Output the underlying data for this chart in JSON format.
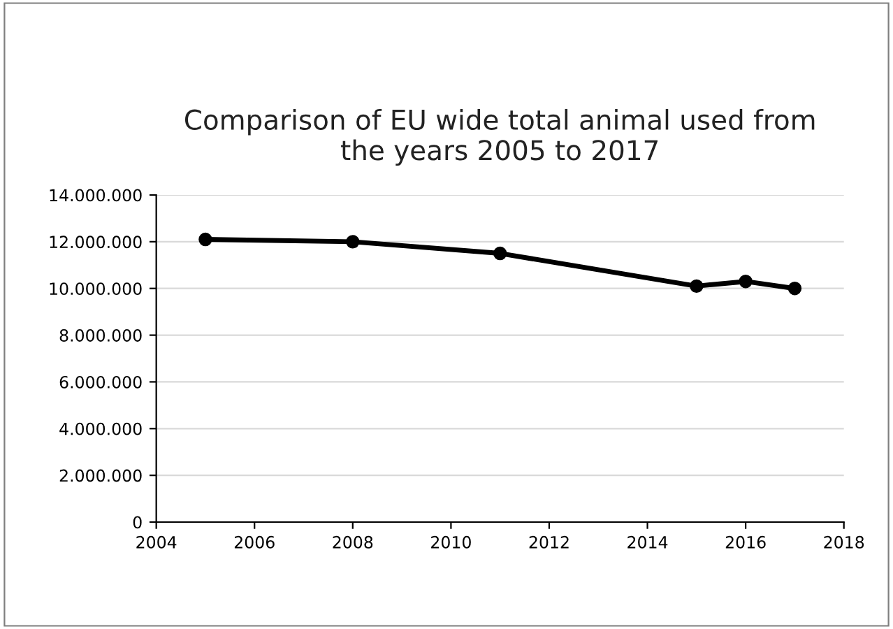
{
  "chart_data": {
    "type": "line",
    "title": "Comparison of EU wide total animal used from\nthe years 2005 to 2017",
    "x": [
      2005,
      2008,
      2011,
      2015,
      2016,
      2017
    ],
    "series": [
      {
        "color": "#000000",
        "values": [
          12100000,
          12000000,
          11500000,
          10100000,
          10300000,
          10000000
        ]
      }
    ],
    "xlim": [
      2004,
      2018
    ],
    "xticks": [
      2004,
      2006,
      2008,
      2010,
      2012,
      2014,
      2016,
      2018
    ],
    "ylim": [
      0,
      14000000
    ],
    "yticks": [
      {
        "value": 0,
        "label": "0"
      },
      {
        "value": 2000000,
        "label": "2.000.000"
      },
      {
        "value": 4000000,
        "label": "4.000.000"
      },
      {
        "value": 6000000,
        "label": "6.000.000"
      },
      {
        "value": 8000000,
        "label": "8.000.000"
      },
      {
        "value": 10000000,
        "label": "10.000.000"
      },
      {
        "value": 12000000,
        "label": "12.000.000"
      },
      {
        "value": 14000000,
        "label": "14.000.000"
      }
    ],
    "grid": "y",
    "marker": "circle",
    "line_style": "solid",
    "legend": false
  }
}
